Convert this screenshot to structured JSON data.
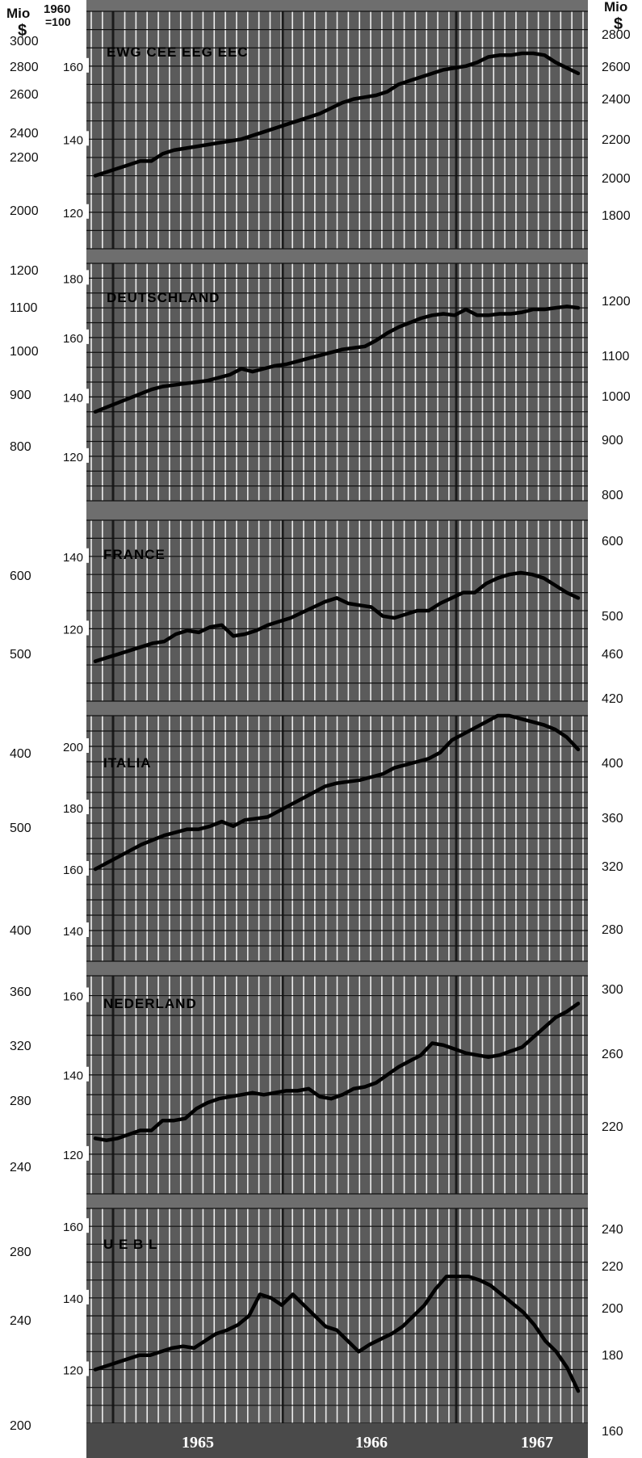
{
  "header": {
    "left_unit_top": "Mio",
    "left_unit_bottom": "$",
    "index_base_top": "1960",
    "index_base_bottom": "=100",
    "right_unit_top": "Mio",
    "right_unit_bottom": "$"
  },
  "colors": {
    "background": "#ffffff",
    "panel": "#5b5b5b",
    "panel_band": "#6e6e6e",
    "grid": "#eeeeee",
    "line": "#000000"
  },
  "chart_data": [
    {
      "type": "line",
      "title": "EWG CEE EEG EEC",
      "ylim": [
        110,
        175
      ],
      "index_ticks": [
        120,
        140,
        160
      ],
      "left_ticks": [
        "3000",
        "2800",
        "2600",
        "2400",
        "2200",
        "2000"
      ],
      "right_ticks": [
        "2800",
        "2600",
        "2400",
        "2200",
        "2000",
        "1800"
      ],
      "series": [
        {
          "values": [
            130,
            131,
            132,
            133,
            134,
            134,
            136,
            137,
            137.5,
            138,
            138.5,
            139,
            139.5,
            140,
            141,
            142,
            143,
            144,
            145,
            146,
            147,
            148.5,
            150,
            151,
            151.5,
            152,
            153,
            155,
            156,
            157,
            158,
            159,
            159.5,
            160,
            161,
            162.5,
            163,
            163,
            163.5,
            163.5,
            163,
            161,
            159.5,
            158
          ]
        }
      ]
    },
    {
      "type": "line",
      "title": "DEUTSCHLAND",
      "ylim": [
        105,
        185
      ],
      "index_ticks": [
        120,
        140,
        160,
        180
      ],
      "left_ticks": [
        "1200",
        "1100",
        "1000",
        "900",
        "800"
      ],
      "right_ticks": [
        "1200",
        "1100",
        "1000",
        "900",
        "800"
      ],
      "series": [
        {
          "values": [
            135,
            136.5,
            138,
            139.5,
            141,
            142.5,
            143.5,
            144,
            144.5,
            145,
            145.5,
            146.5,
            147.5,
            149.5,
            148.5,
            149.5,
            150.5,
            151,
            152,
            153,
            154,
            155,
            156,
            156.5,
            157,
            159,
            161.5,
            163.5,
            165,
            166.5,
            167.5,
            168,
            167.5,
            169.5,
            167.5,
            167.5,
            168,
            168,
            168.5,
            169.5,
            169.5,
            170,
            170.5,
            170
          ]
        }
      ]
    },
    {
      "type": "line",
      "title": "FRANCE",
      "ylim": [
        100,
        150
      ],
      "index_ticks": [
        120,
        140
      ],
      "left_ticks": [
        "600",
        "500"
      ],
      "right_ticks": [
        "600",
        "500",
        "460",
        "420"
      ],
      "series": [
        {
          "values": [
            111,
            112,
            113,
            114,
            115,
            116,
            116.5,
            118.5,
            119.5,
            119,
            120.5,
            121,
            118,
            118.5,
            119.5,
            121,
            122,
            123,
            124.5,
            126,
            127.5,
            128.5,
            127,
            126.5,
            126,
            123.5,
            123,
            124,
            125,
            125,
            127,
            128.5,
            130,
            130,
            132.5,
            134,
            135,
            135.5,
            135,
            134,
            132,
            130,
            128.5
          ]
        }
      ]
    },
    {
      "type": "line",
      "title": "ITALIA",
      "ylim": [
        130,
        210
      ],
      "index_ticks": [
        140,
        160,
        180,
        200
      ],
      "left_ticks": [
        "400",
        "500",
        "400"
      ],
      "right_ticks": [
        "400",
        "360",
        "320",
        "280"
      ],
      "series": [
        {
          "values": [
            160,
            162,
            164,
            166,
            168,
            169.5,
            171,
            172,
            173,
            173,
            174,
            175.5,
            174,
            176,
            176.5,
            177,
            179,
            181,
            183,
            185,
            187,
            188,
            188.5,
            189,
            190,
            191,
            193,
            194,
            195,
            196,
            198,
            202,
            204,
            206,
            208,
            210,
            210,
            209,
            208,
            207,
            205.5,
            203,
            199
          ]
        }
      ]
    },
    {
      "type": "line",
      "title": "NEDERLAND",
      "ylim": [
        110,
        165
      ],
      "index_ticks": [
        120,
        140,
        160
      ],
      "left_ticks": [
        "360",
        "320",
        "280",
        "240"
      ],
      "right_ticks": [
        "300",
        "260",
        "220"
      ],
      "series": [
        {
          "values": [
            124,
            123.5,
            124,
            125,
            126,
            126,
            128.5,
            128.5,
            129,
            131.5,
            133,
            134,
            134.5,
            135,
            135.5,
            135,
            135.5,
            136,
            136,
            136.5,
            134.5,
            134,
            135,
            136.5,
            137,
            138,
            140,
            142,
            143.5,
            145,
            148,
            147.5,
            146.5,
            145.5,
            145,
            144.5,
            145,
            146,
            147,
            149.5,
            152,
            154.5,
            156,
            158
          ]
        }
      ]
    },
    {
      "type": "line",
      "title": "U E B L",
      "ylim": [
        105,
        165
      ],
      "index_ticks": [
        120,
        140,
        160
      ],
      "left_ticks": [
        "280",
        "240",
        "200"
      ],
      "right_ticks": [
        "240",
        "220",
        "200",
        "180",
        "160"
      ],
      "series": [
        {
          "values": [
            120,
            121,
            122,
            123,
            124,
            124,
            125,
            126,
            126.5,
            126,
            128,
            130,
            131,
            132.5,
            135,
            141,
            140,
            138,
            141,
            138,
            135,
            132,
            131,
            128,
            125,
            127,
            128.5,
            130,
            132,
            135,
            138,
            142.5,
            146,
            146,
            146,
            145,
            143.5,
            141,
            138.5,
            136,
            132.5,
            128,
            125,
            120.5,
            114
          ]
        }
      ]
    }
  ],
  "x_axis": {
    "ticks": [
      "1965",
      "1966",
      "1967"
    ]
  }
}
